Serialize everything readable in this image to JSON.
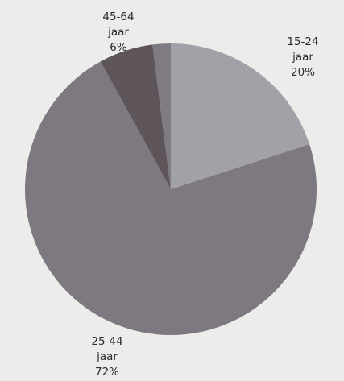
{
  "chart_data": {
    "type": "pie",
    "slices": [
      {
        "label": [
          "15-24",
          "jaar",
          "20%"
        ],
        "value": 20,
        "color": "#a3a1a8"
      },
      {
        "label": [
          "25-44",
          "jaar",
          "72%"
        ],
        "value": 72,
        "color": "#7e7880"
      },
      {
        "label": [
          "45-64",
          "jaar",
          "6%"
        ],
        "value": 6,
        "color": "#5d5559"
      },
      {
        "label": [],
        "value": 2,
        "color": "#807b82"
      }
    ],
    "start_angle": "12 o'clock",
    "direction": "clockwise",
    "legend": "none"
  }
}
